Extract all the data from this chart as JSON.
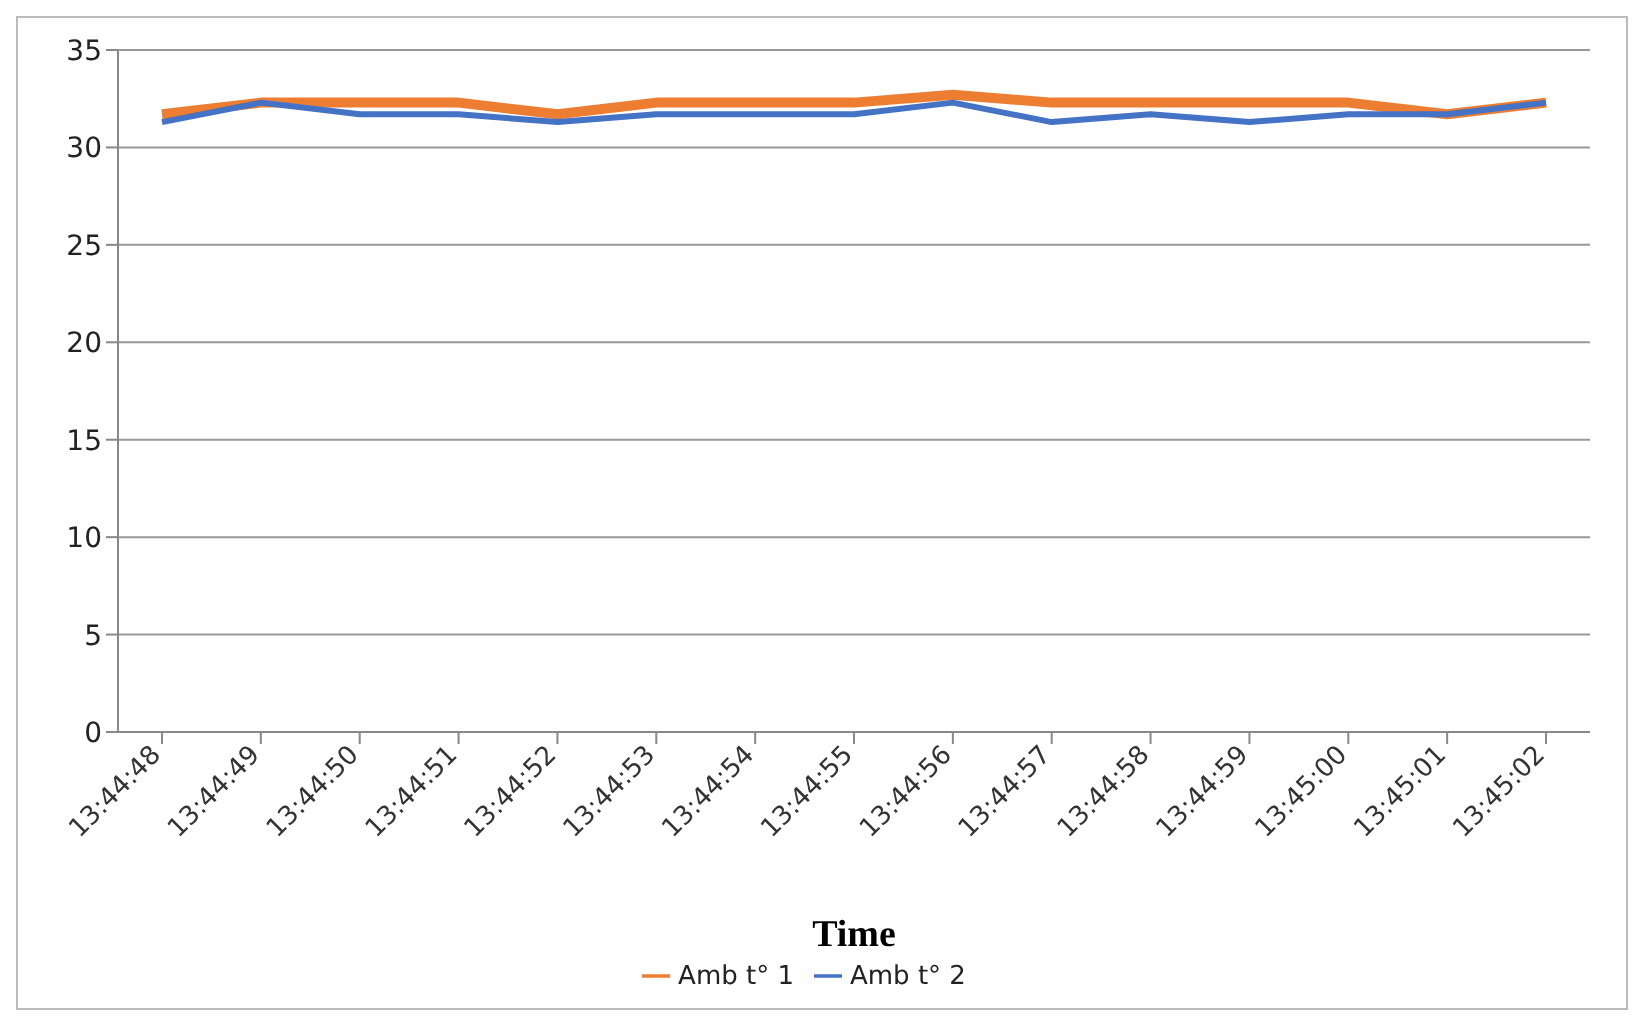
{
  "chart_data": {
    "type": "line",
    "xlabel": "Time",
    "categories": [
      "13:44:48",
      "13:44:49",
      "13:44:50",
      "13:44:51",
      "13:44:52",
      "13:44:53",
      "13:44:54",
      "13:44:55",
      "13:44:56",
      "13:44:57",
      "13:44:58",
      "13:44:59",
      "13:45:00",
      "13:45:01",
      "13:45:02"
    ],
    "series": [
      {
        "name": "Amb t° 1",
        "color": "#ed7d31",
        "values": [
          31.7,
          32.3,
          32.3,
          32.3,
          31.7,
          32.3,
          32.3,
          32.3,
          32.7,
          32.3,
          32.3,
          32.3,
          32.3,
          31.7,
          32.3
        ]
      },
      {
        "name": "Amb t° 2",
        "color": "#4472c4",
        "values": [
          31.3,
          32.3,
          31.7,
          31.7,
          31.3,
          31.7,
          31.7,
          31.7,
          32.3,
          31.3,
          31.7,
          31.3,
          31.7,
          31.7,
          32.3
        ]
      }
    ],
    "ylim": [
      0,
      35
    ],
    "yticks": [
      0,
      5,
      10,
      15,
      20,
      25,
      30,
      35
    ],
    "grid": "y",
    "legend": "bottom",
    "marker": "none",
    "line_style": "solid"
  }
}
